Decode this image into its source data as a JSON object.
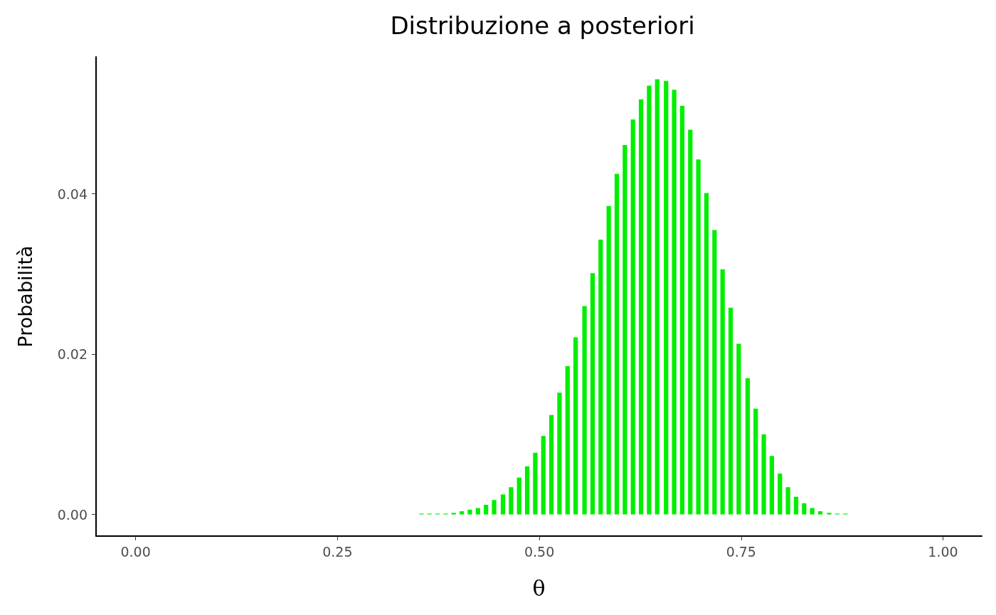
{
  "chart_data": {
    "type": "bar",
    "title": "Distribuzione a posteriori",
    "xlabel": "θ",
    "ylabel": "Probabilità",
    "color": "#00ee00",
    "x": [
      0.313,
      0.323,
      0.333,
      0.343,
      0.354,
      0.364,
      0.374,
      0.384,
      0.394,
      0.404,
      0.414,
      0.424,
      0.434,
      0.444,
      0.455,
      0.465,
      0.475,
      0.485,
      0.495,
      0.505,
      0.515,
      0.525,
      0.535,
      0.545,
      0.556,
      0.566,
      0.576,
      0.586,
      0.596,
      0.606,
      0.616,
      0.626,
      0.636,
      0.646,
      0.657,
      0.667,
      0.677,
      0.687,
      0.697,
      0.707,
      0.717,
      0.727,
      0.737,
      0.747,
      0.758,
      0.768,
      0.778,
      0.788,
      0.798,
      0.808,
      0.818,
      0.828,
      0.838,
      0.848,
      0.859,
      0.869,
      0.879,
      0.889,
      0.899
    ],
    "values": [
      0,
      0,
      0,
      0,
      0.0001,
      0.0001,
      0.0001,
      0.0001,
      0.0002,
      0.0004,
      0.0006,
      0.0008,
      0.0012,
      0.0018,
      0.0025,
      0.0034,
      0.0046,
      0.006,
      0.0077,
      0.0098,
      0.0124,
      0.0152,
      0.0185,
      0.0221,
      0.026,
      0.0301,
      0.0343,
      0.0385,
      0.0425,
      0.0461,
      0.0493,
      0.0518,
      0.0535,
      0.0543,
      0.0541,
      0.053,
      0.051,
      0.048,
      0.0443,
      0.0401,
      0.0355,
      0.0306,
      0.0258,
      0.0213,
      0.017,
      0.0132,
      0.01,
      0.0073,
      0.0051,
      0.0034,
      0.0022,
      0.0014,
      0.0008,
      0.0004,
      0.0002,
      0.0001,
      0.0001,
      0,
      0
    ],
    "xlim": [
      -0.049,
      1.048
    ],
    "xticks": [
      {
        "value": 0,
        "label": "0.00"
      },
      {
        "value": 0.25,
        "label": "0.25"
      },
      {
        "value": 0.5,
        "label": "0.50"
      },
      {
        "value": 0.75,
        "label": "0.75"
      },
      {
        "value": 1,
        "label": "1.00"
      }
    ],
    "ylim": [
      -0.0027,
      0.0571
    ],
    "yticks": [
      {
        "value": 0,
        "label": "0.00"
      },
      {
        "value": 0.02,
        "label": "0.02"
      },
      {
        "value": 0.04,
        "label": "0.04"
      }
    ],
    "grid": false
  }
}
